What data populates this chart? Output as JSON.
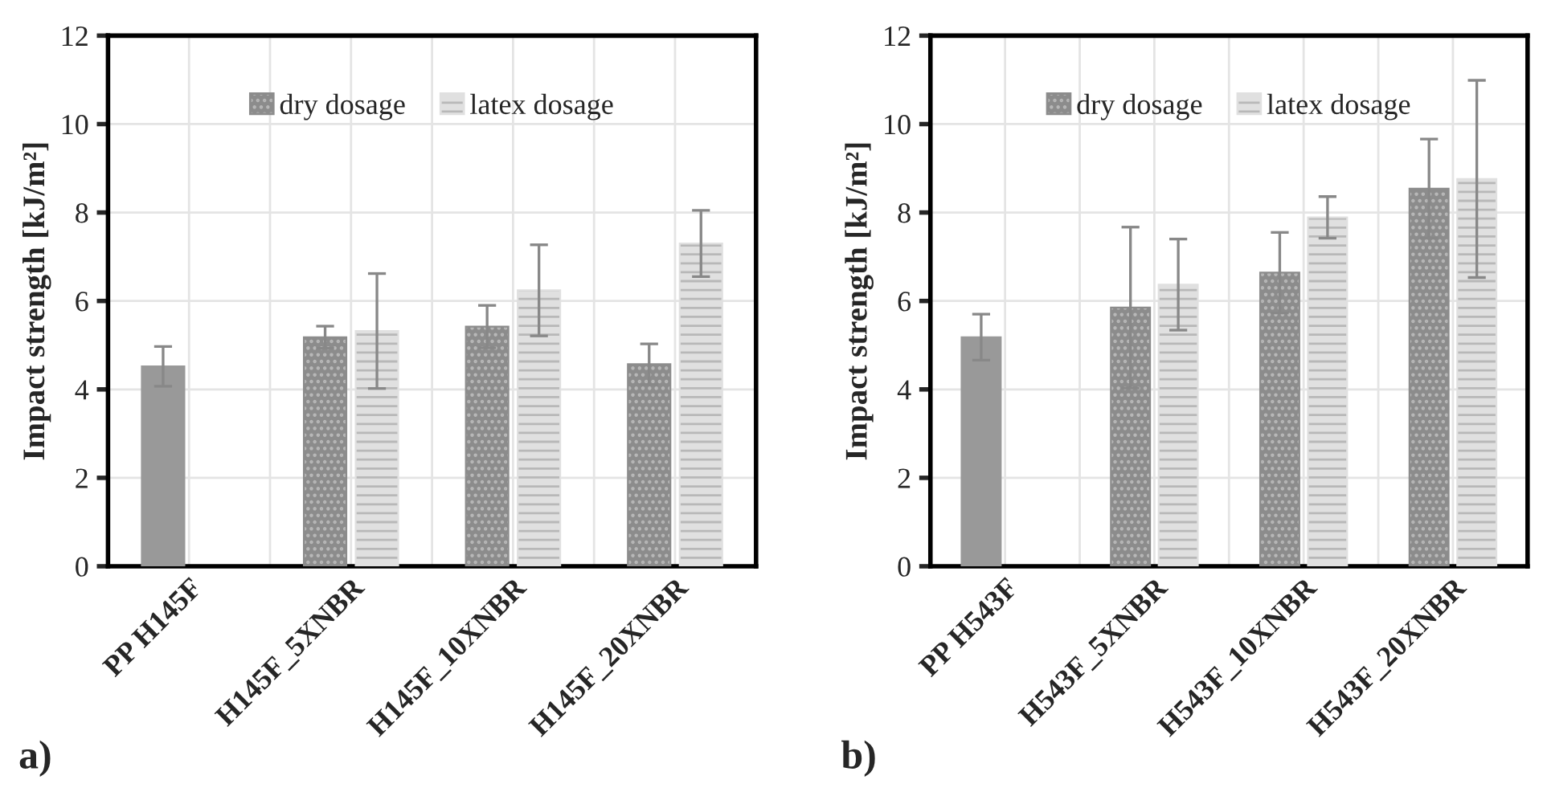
{
  "chart_data": [
    {
      "type": "bar",
      "categories": [
        "PP H145F",
        "H145F_5XNBR",
        "H145F_10XNBR",
        "H145F_20XNBR"
      ],
      "ylabel": "Impact strength [kJ/m²]",
      "ylim": [
        0,
        12
      ],
      "yticks": [
        0,
        2,
        4,
        6,
        8,
        10,
        12
      ],
      "grid": true,
      "legend": "top",
      "annotations": [
        "a)"
      ],
      "series": [
        {
          "color": "#999999",
          "values": [
            4.52,
            null,
            null,
            null
          ],
          "errors": [
            0.45,
            null,
            null,
            null
          ]
        },
        {
          "name": "dry dosage",
          "color": "#8c8c8c",
          "values": [
            null,
            5.18,
            5.42,
            4.57
          ],
          "errors": [
            null,
            0.25,
            0.48,
            0.46
          ]
        },
        {
          "name": "latex dosage",
          "color": "#e0e0e0",
          "values": [
            null,
            5.32,
            6.24,
            7.3
          ],
          "errors": [
            null,
            1.3,
            1.03,
            0.75
          ]
        }
      ]
    },
    {
      "type": "bar",
      "categories": [
        "PP H543F",
        "H543F_5XNBR",
        "H543F_10XNBR",
        "H543F_20XNBR"
      ],
      "ylabel": "Impact strength [kJ/m²]",
      "ylim": [
        0,
        12
      ],
      "yticks": [
        0,
        2,
        4,
        6,
        8,
        10,
        12
      ],
      "grid": true,
      "legend": "top",
      "annotations": [
        "b)"
      ],
      "series": [
        {
          "color": "#999999",
          "values": [
            5.18,
            null,
            null,
            null
          ],
          "errors": [
            0.52,
            null,
            null,
            null
          ]
        },
        {
          "name": "dry dosage",
          "color": "#8c8c8c",
          "values": [
            null,
            5.85,
            6.64,
            8.54
          ],
          "errors": [
            null,
            1.82,
            0.91,
            1.12
          ]
        },
        {
          "name": "latex dosage",
          "color": "#e0e0e0",
          "values": [
            null,
            6.37,
            7.89,
            8.76
          ],
          "errors": [
            null,
            1.03,
            0.47,
            2.23
          ]
        }
      ]
    }
  ]
}
